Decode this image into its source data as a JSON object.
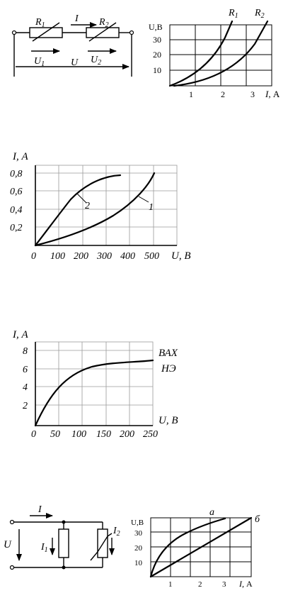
{
  "circuit1": {
    "r1": "R",
    "r1_sub": "1",
    "r2": "R",
    "r2_sub": "2",
    "i": "I",
    "u1": "U",
    "u1_sub": "1",
    "u2": "U",
    "u2_sub": "2",
    "u": "U"
  },
  "chart1": {
    "ylabel": "U,В",
    "xlabel_i": "I,",
    "xlabel_unit": "А",
    "yticks": [
      "30",
      "20",
      "10"
    ],
    "xticks": [
      "1",
      "2",
      "3"
    ],
    "curve_labels": [
      {
        "t": "R",
        "s": "1"
      },
      {
        "t": "R",
        "s": "2"
      }
    ]
  },
  "chart2": {
    "ylabel": "I, А",
    "xlabel": "U, В",
    "yticks": [
      "0,8",
      "0,6",
      "0,4",
      "0,2"
    ],
    "xticks": [
      "0",
      "100",
      "200",
      "300",
      "400",
      "500"
    ],
    "curve_labels": [
      "2",
      "1"
    ]
  },
  "chart3": {
    "ylabel": "I, А",
    "xlabel": "U, В",
    "yticks": [
      "8",
      "6",
      "4",
      "2"
    ],
    "xticks": [
      "0",
      "50",
      "100",
      "150",
      "200",
      "250"
    ],
    "annotation1": "ВАХ",
    "annotation2": "НЭ"
  },
  "circuit2": {
    "i": "I",
    "u": "U",
    "i1": "I",
    "i1_sub": "1",
    "i2": "I",
    "i2_sub": "2"
  },
  "chart4": {
    "ylabel": "U,В",
    "xlabel_i": "I,",
    "xlabel_unit": "А",
    "yticks": [
      "30",
      "20",
      "10"
    ],
    "xticks": [
      "1",
      "2",
      "3"
    ],
    "curve_labels": [
      "а",
      "б"
    ]
  }
}
